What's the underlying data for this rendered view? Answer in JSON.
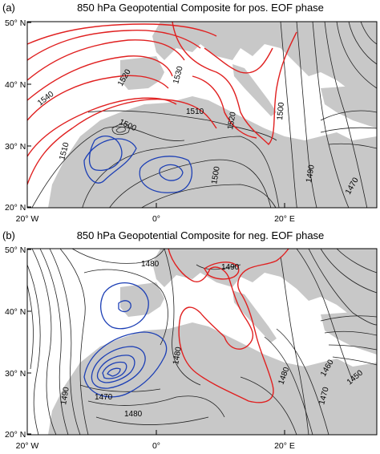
{
  "chart_data": [
    {
      "type": "contour",
      "panel_label": "(a)",
      "title": "850 hPa Geopotential Composite for pos. EOF phase",
      "x_ticks": [
        "20° W",
        "0°",
        "20° E"
      ],
      "y_ticks": [
        "50° N",
        "40° N",
        "30° N",
        "20° N"
      ],
      "xlim": [
        -20,
        35
      ],
      "ylim": [
        20,
        50
      ],
      "contour_labels": [
        "1540",
        "1520",
        "1530",
        "1520",
        "1510",
        "1500",
        "1510",
        "1500",
        "1500",
        "1490",
        "1470"
      ]
    },
    {
      "type": "contour",
      "panel_label": "(b)",
      "title": "850 hPa Geopotential Composite for neg. EOF phase",
      "x_ticks": [
        "20° W",
        "0°",
        "20° E"
      ],
      "y_ticks": [
        "50° N",
        "40° N",
        "30° N",
        "20° N"
      ],
      "xlim": [
        -20,
        35
      ],
      "ylim": [
        20,
        50
      ],
      "contour_labels": [
        "1480",
        "1490",
        "1480",
        "1470",
        "1490",
        "1480",
        "1480",
        "1470",
        "1460",
        "1450"
      ]
    }
  ]
}
